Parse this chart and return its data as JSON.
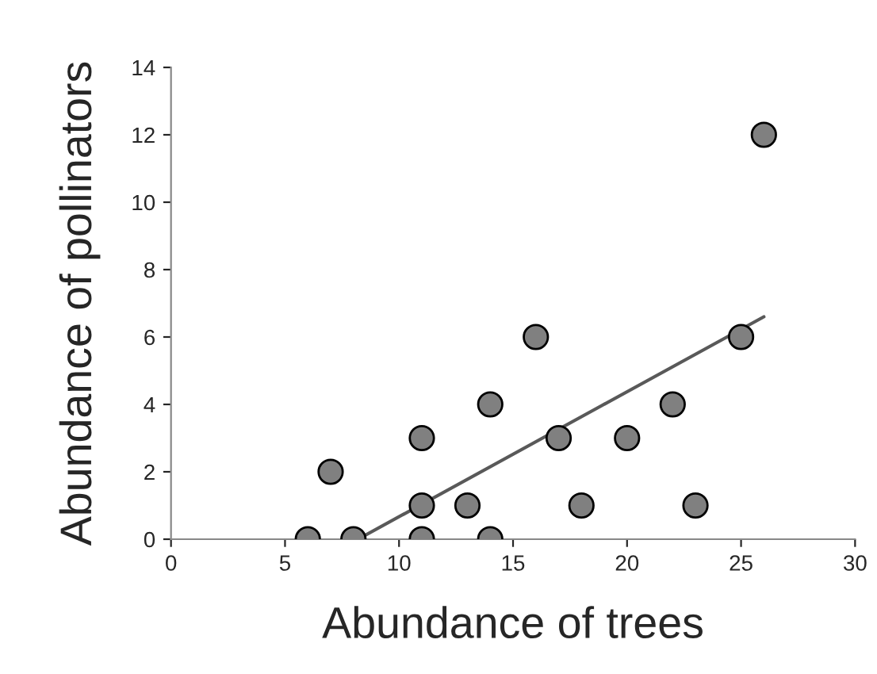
{
  "chart_data": {
    "type": "scatter",
    "xlabel": "Abundance of trees",
    "ylabel": "Abundance of pollinators",
    "xlim": [
      0,
      30
    ],
    "ylim": [
      0,
      14
    ],
    "xticks": [
      0,
      5,
      10,
      15,
      20,
      25,
      30
    ],
    "yticks": [
      0,
      2,
      4,
      6,
      8,
      10,
      12,
      14
    ],
    "grid": false,
    "series": [
      {
        "color": "#808080",
        "marker": "circle",
        "x": [
          6,
          7,
          8,
          11,
          11,
          11,
          13,
          14,
          14,
          16,
          17,
          18,
          20,
          22,
          23,
          25,
          26
        ],
        "values": [
          0,
          2,
          0,
          3,
          1,
          0,
          1,
          4,
          0,
          6,
          3,
          1,
          3,
          4,
          1,
          6,
          12
        ]
      },
      {
        "type": "line",
        "color": "#595959",
        "x": [
          8.2,
          26
        ],
        "values": [
          0,
          6.6
        ]
      }
    ]
  }
}
